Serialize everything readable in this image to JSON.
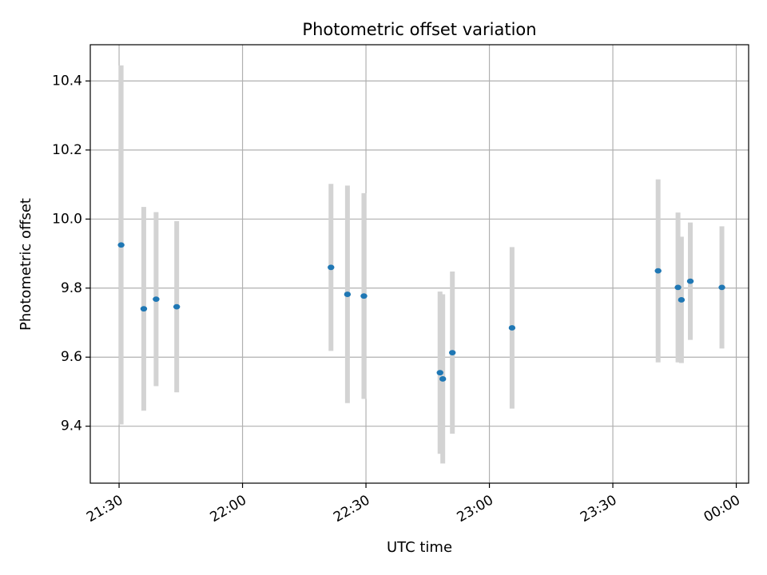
{
  "chart_data": {
    "type": "scatter",
    "title": "Photometric offset variation",
    "xlabel": "UTC time",
    "ylabel": "Photometric offset",
    "x_axis": {
      "kind": "time",
      "start": "21:23",
      "end": "00:03",
      "ticks": [
        "21:30",
        "22:00",
        "22:30",
        "23:00",
        "23:30",
        "00:00"
      ]
    },
    "y_axis": {
      "range": [
        9.235,
        10.505
      ],
      "ticks": [
        "9.4",
        "9.6",
        "9.8",
        "10.0",
        "10.2",
        "10.4"
      ]
    },
    "grid": true,
    "colors": {
      "point": "#1f77b4",
      "errorbar": "#d3d3d3",
      "grid": "#b0b0b0",
      "axes": "#000000"
    },
    "series": [
      {
        "points": [
          {
            "x": "21:30:30",
            "y": 9.925,
            "err": 0.52
          },
          {
            "x": "21:36:00",
            "y": 9.74,
            "err": 0.295
          },
          {
            "x": "21:39:00",
            "y": 9.768,
            "err": 0.252
          },
          {
            "x": "21:44:00",
            "y": 9.746,
            "err": 0.248
          },
          {
            "x": "22:21:30",
            "y": 9.86,
            "err": 0.242
          },
          {
            "x": "22:25:30",
            "y": 9.782,
            "err": 0.315
          },
          {
            "x": "22:29:30",
            "y": 9.777,
            "err": 0.298
          },
          {
            "x": "22:48:00",
            "y": 9.555,
            "err": 0.235
          },
          {
            "x": "22:48:40",
            "y": 9.537,
            "err": 0.245
          },
          {
            "x": "22:51:00",
            "y": 9.613,
            "err": 0.235
          },
          {
            "x": "23:05:30",
            "y": 9.685,
            "err": 0.234
          },
          {
            "x": "23:41:00",
            "y": 9.85,
            "err": 0.265
          },
          {
            "x": "23:45:50",
            "y": 9.802,
            "err": 0.217
          },
          {
            "x": "23:46:40",
            "y": 9.766,
            "err": 0.183
          },
          {
            "x": "23:48:50",
            "y": 9.82,
            "err": 0.17
          },
          {
            "x": "23:56:30",
            "y": 9.802,
            "err": 0.177
          }
        ]
      }
    ]
  }
}
